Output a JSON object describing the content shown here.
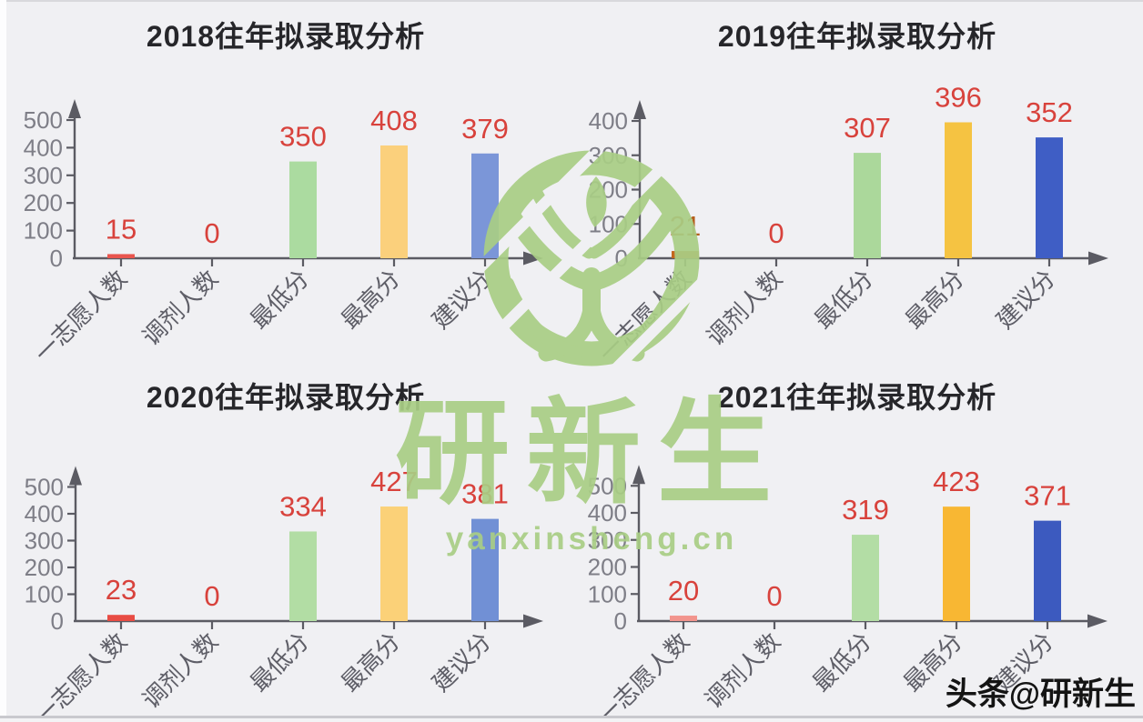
{
  "page": {
    "background": "#f0f0f3",
    "description": "Four bar charts of past admission analysis by year with green brand watermark"
  },
  "watermark": {
    "brand": "研新生",
    "domain": "yanxinsheng.cn",
    "handle": "头条@研新生",
    "green": "#a8cd84",
    "handle_color": "#141414",
    "logo": "seedling-in-ring-logo"
  },
  "style": {
    "axis_color": "#5b5b63",
    "tick_label_color": "#7e7e87",
    "category_label_color": "#5e5e67",
    "title_color": "#26262a",
    "default_value_label_color": "#d8423c"
  },
  "chart_data": [
    {
      "type": "bar",
      "title": "2018往年拟录取分析",
      "categories": [
        "一志愿人数",
        "调剂人数",
        "最低分",
        "最高分",
        "建议分"
      ],
      "values": [
        15,
        0,
        350,
        408,
        379
      ],
      "ylim": [
        0,
        500
      ],
      "yticks": [
        0,
        100,
        200,
        300,
        400,
        500
      ],
      "xlabel": "",
      "ylabel": "",
      "grid": false,
      "legend": false,
      "bar_colors": [
        "#e8554e",
        "#e8554e",
        "#abdba0",
        "#fbd07c",
        "#7b96d8"
      ],
      "value_label_colors": [
        "#d8423c",
        "#d8423c",
        "#d8423c",
        "#d8423c",
        "#d8423c"
      ]
    },
    {
      "type": "bar",
      "title": "2019往年拟录取分析",
      "categories": [
        "一志愿人数",
        "调剂人数",
        "最低分",
        "最高分",
        "建议分"
      ],
      "values": [
        21,
        0,
        307,
        396,
        352
      ],
      "ylim": [
        0,
        400
      ],
      "yticks": [
        0,
        100,
        200,
        300,
        400
      ],
      "xlabel": "",
      "ylabel": "",
      "grid": false,
      "legend": false,
      "bar_colors": [
        "#c4671d",
        "#e8554e",
        "#abd89b",
        "#f5c342",
        "#3f5ec5"
      ],
      "value_label_colors": [
        "#b45e1c",
        "#d8423c",
        "#d8423c",
        "#d8423c",
        "#d8423c"
      ]
    },
    {
      "type": "bar",
      "title": "2020往年拟录取分析",
      "categories": [
        "一志愿人数",
        "调剂人数",
        "最低分",
        "最高分",
        "建议分"
      ],
      "values": [
        23,
        0,
        334,
        427,
        381
      ],
      "ylim": [
        0,
        500
      ],
      "yticks": [
        0,
        100,
        200,
        300,
        400,
        500
      ],
      "xlabel": "",
      "ylabel": "",
      "grid": false,
      "legend": false,
      "bar_colors": [
        "#e84c44",
        "#e84c44",
        "#b2dda4",
        "#fbd178",
        "#7190d5"
      ],
      "value_label_colors": [
        "#d8423c",
        "#d8423c",
        "#d8423c",
        "#d8423c",
        "#d8423c"
      ]
    },
    {
      "type": "bar",
      "title": "2021往年拟录取分析",
      "categories": [
        "一志愿人数",
        "调剂人数",
        "最低分",
        "最高分",
        "建议分"
      ],
      "values": [
        20,
        0,
        319,
        423,
        371
      ],
      "ylim": [
        0,
        500
      ],
      "yticks": [
        0,
        100,
        200,
        300,
        400,
        500
      ],
      "xlabel": "",
      "ylabel": "",
      "grid": false,
      "legend": false,
      "bar_colors": [
        "#f2948d",
        "#f2948d",
        "#b3dda5",
        "#f8b733",
        "#3c5abf"
      ],
      "value_label_colors": [
        "#d8423c",
        "#d8423c",
        "#d8423c",
        "#d8423c",
        "#d8423c"
      ]
    }
  ]
}
